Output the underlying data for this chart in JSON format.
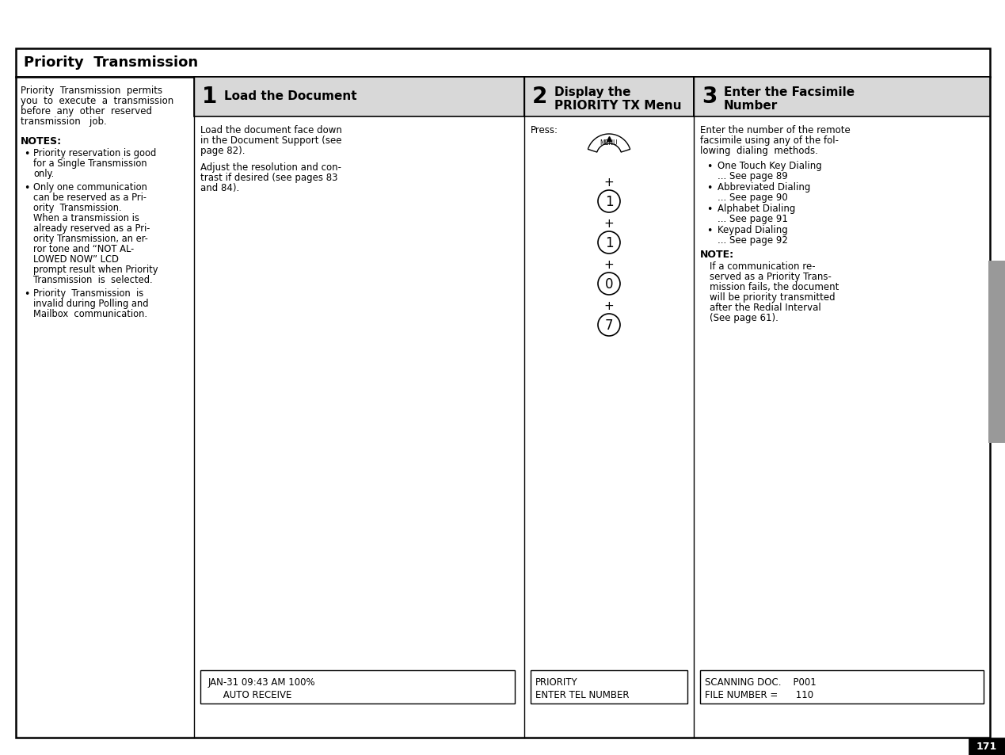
{
  "title": "Priority  Transmission",
  "page_number": "171",
  "background_color": "#ffffff",
  "header_bg": "#e0e0e0",
  "step_header_bg": "#d8d8d8",
  "step1": {
    "number": "1",
    "title": "Load the Document",
    "body1_lines": [
      "Load the document face down",
      "in the Document Support (see",
      "page 82)."
    ],
    "body2_lines": [
      "Adjust the resolution and con-",
      "trast if desired (see pages 83",
      "and 84)."
    ],
    "lcd_line1": "JAN-31 09:43 AM 100%",
    "lcd_line2": "     AUTO RECEIVE"
  },
  "step2": {
    "number": "2",
    "title_line1": "Display the",
    "title_line2": "PRIORITY TX Menu",
    "press": "Press:",
    "buttons": [
      "1",
      "1",
      "0",
      "7"
    ],
    "lcd_line1": "PRIORITY",
    "lcd_line2": "ENTER TEL NUMBER"
  },
  "step3": {
    "number": "3",
    "title_line1": "Enter the Facsimile",
    "title_line2": "Number",
    "body_lines": [
      "Enter the number of the remote",
      "facsimile using any of the fol-",
      "lowing  dialing  methods."
    ],
    "methods": [
      [
        "One Touch Key Dialing",
        "... See page 89"
      ],
      [
        "Abbreviated Dialing",
        "... See page 90"
      ],
      [
        "Alphabet Dialing",
        "... See page 91"
      ],
      [
        "Keypad Dialing",
        "... See page 92"
      ]
    ],
    "note_header": "NOTE:",
    "note_lines": [
      "If a communication re-",
      "served as a Priority Trans-",
      "mission fails, the document",
      "will be priority transmitted",
      "after the Redial Interval",
      "(See page 61)."
    ],
    "lcd_line1": "SCANNING DOC.    P001",
    "lcd_line2": "FILE NUMBER =      110"
  },
  "left_panel": {
    "intro_lines": [
      "Priority  Transmission  permits",
      "you  to  execute  a  transmission",
      "before  any  other  reserved",
      "transmission   job."
    ],
    "notes_header": "NOTES:",
    "notes": [
      [
        "Priority reservation is good",
        "for a Single Transmission",
        "only."
      ],
      [
        "Only one communication",
        "can be reserved as a Pri-",
        "ority  Transmission.",
        "When a transmission is",
        "already reserved as a Pri-",
        "ority Transmission, an er-",
        "ror tone and “NOT AL-",
        "LOWED NOW” LCD",
        "prompt result when Priority",
        "Transmission  is  selected."
      ],
      [
        "Priority  Transmission  is",
        "invalid during Polling and",
        "Mailbox  communication."
      ]
    ]
  }
}
